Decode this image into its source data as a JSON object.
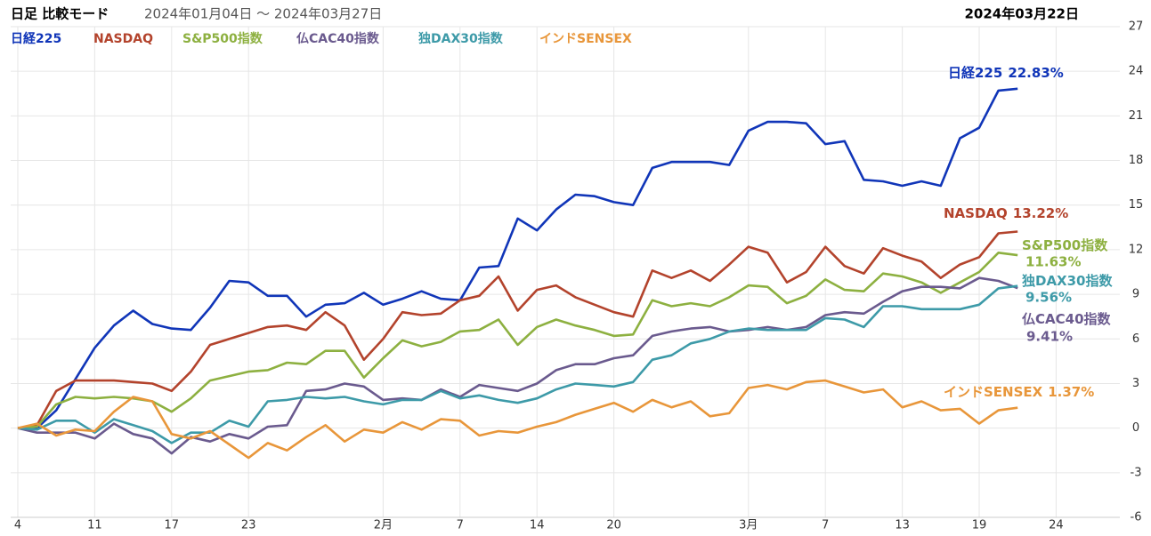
{
  "chart_data": {
    "type": "line",
    "title": "日足 比較モード",
    "subtitle": "2024年01月04日 ～ 2024年03月27日",
    "date_label": "2024年03月22日",
    "categories": [
      "4",
      null,
      null,
      null,
      "11",
      null,
      null,
      null,
      "17",
      null,
      null,
      null,
      "23",
      null,
      null,
      null,
      null,
      null,
      null,
      "2月",
      null,
      null,
      null,
      "7",
      null,
      null,
      null,
      "14",
      null,
      null,
      null,
      "20",
      null,
      null,
      null,
      null,
      null,
      null,
      "3月",
      null,
      null,
      null,
      "7",
      null,
      null,
      null,
      "13",
      null,
      null,
      null,
      "19",
      null,
      null,
      null,
      "24"
    ],
    "ylim": [
      -6,
      27
    ],
    "yticks": [
      -6,
      -3,
      0,
      3,
      6,
      9,
      12,
      15,
      18,
      21,
      24,
      27
    ],
    "grid": true,
    "series": [
      {
        "name": "日経225",
        "color": "#1035b8",
        "end_label": "22.83%",
        "values": [
          0,
          0,
          1.2,
          3.3,
          5.4,
          6.9,
          7.9,
          7.0,
          6.7,
          6.6,
          8.1,
          9.9,
          9.8,
          8.9,
          8.9,
          7.5,
          8.3,
          8.4,
          9.1,
          8.3,
          8.7,
          9.2,
          8.7,
          8.6,
          10.8,
          10.9,
          14.1,
          13.3,
          14.7,
          15.7,
          15.6,
          15.2,
          15.0,
          17.5,
          17.9,
          17.9,
          17.9,
          17.7,
          20.0,
          20.6,
          20.6,
          20.5,
          19.1,
          19.3,
          16.7,
          16.6,
          16.3,
          16.6,
          16.3,
          19.5,
          20.2,
          22.7,
          22.83,
          null,
          null
        ]
      },
      {
        "name": "NASDAQ",
        "color": "#b3432c",
        "end_label": "13.22%",
        "values": [
          0,
          0.2,
          2.5,
          3.2,
          3.2,
          3.2,
          3.1,
          3.0,
          2.5,
          3.8,
          5.6,
          6.0,
          6.4,
          6.8,
          6.9,
          6.6,
          7.8,
          6.9,
          4.6,
          6.0,
          7.8,
          7.6,
          7.7,
          8.6,
          8.9,
          10.2,
          7.9,
          9.3,
          9.6,
          8.8,
          8.3,
          7.8,
          7.5,
          10.6,
          10.1,
          10.6,
          9.9,
          11.0,
          12.2,
          11.8,
          9.8,
          10.5,
          12.2,
          10.9,
          10.4,
          12.1,
          11.6,
          11.2,
          10.1,
          11.0,
          11.5,
          13.1,
          13.22,
          null,
          null
        ]
      },
      {
        "name": "S&P500指数",
        "color": "#8db040",
        "end_label": "11.63%",
        "values": [
          0,
          0.1,
          1.6,
          2.1,
          2.0,
          2.1,
          2.0,
          1.8,
          1.1,
          2.0,
          3.2,
          3.5,
          3.8,
          3.9,
          4.4,
          4.3,
          5.2,
          5.2,
          3.4,
          4.7,
          5.9,
          5.5,
          5.8,
          6.5,
          6.6,
          7.3,
          5.6,
          6.8,
          7.3,
          6.9,
          6.6,
          6.2,
          6.3,
          8.6,
          8.2,
          8.4,
          8.2,
          8.8,
          9.6,
          9.5,
          8.4,
          8.9,
          10.0,
          9.3,
          9.2,
          10.4,
          10.2,
          9.8,
          9.1,
          9.8,
          10.5,
          11.8,
          11.63,
          null,
          null
        ]
      },
      {
        "name": "仏CAC40指数",
        "color": "#6a5a8e",
        "end_label": "9.41%",
        "values": [
          0,
          -0.3,
          -0.3,
          -0.3,
          -0.7,
          0.3,
          -0.4,
          -0.7,
          -1.7,
          -0.6,
          -0.9,
          -0.4,
          -0.7,
          0.1,
          0.2,
          2.5,
          2.6,
          3.0,
          2.8,
          1.9,
          2.0,
          1.9,
          2.6,
          2.1,
          2.9,
          2.7,
          2.5,
          3.0,
          3.9,
          4.3,
          4.3,
          4.7,
          4.9,
          6.2,
          6.5,
          6.7,
          6.8,
          6.5,
          6.6,
          6.8,
          6.6,
          6.8,
          7.6,
          7.8,
          7.7,
          8.5,
          9.2,
          9.5,
          9.5,
          9.4,
          10.1,
          9.9,
          9.41,
          null,
          null
        ]
      },
      {
        "name": "独DAX30指数",
        "color": "#3d9aa8",
        "end_label": "9.56%",
        "values": [
          0,
          -0.1,
          0.5,
          0.5,
          -0.3,
          0.6,
          0.2,
          -0.2,
          -1.0,
          -0.3,
          -0.3,
          0.5,
          0.1,
          1.8,
          1.9,
          2.1,
          2.0,
          2.1,
          1.8,
          1.6,
          1.9,
          1.9,
          2.5,
          2.0,
          2.2,
          1.9,
          1.7,
          2.0,
          2.6,
          3.0,
          2.9,
          2.8,
          3.1,
          4.6,
          4.9,
          5.7,
          6.0,
          6.5,
          6.7,
          6.6,
          6.6,
          6.6,
          7.4,
          7.3,
          6.8,
          8.2,
          8.2,
          8.0,
          8.0,
          8.0,
          8.3,
          9.4,
          9.56,
          null,
          null
        ]
      },
      {
        "name": "インドSENSEX",
        "color": "#e8963a",
        "end_label": "1.37%",
        "values": [
          0,
          0.3,
          -0.5,
          -0.1,
          -0.2,
          1.1,
          2.1,
          1.8,
          -0.4,
          -0.7,
          -0.2,
          -1.1,
          -2.0,
          -1.0,
          -1.5,
          -0.6,
          0.2,
          -0.9,
          -0.1,
          -0.3,
          0.4,
          -0.1,
          0.6,
          0.5,
          -0.5,
          -0.2,
          -0.3,
          0.1,
          0.4,
          0.9,
          1.3,
          1.7,
          1.1,
          1.9,
          1.4,
          1.8,
          0.8,
          1.0,
          2.7,
          2.9,
          2.6,
          3.1,
          3.2,
          2.8,
          2.4,
          2.6,
          1.4,
          1.8,
          1.2,
          1.3,
          0.3,
          1.2,
          1.37,
          null,
          null
        ]
      }
    ]
  }
}
